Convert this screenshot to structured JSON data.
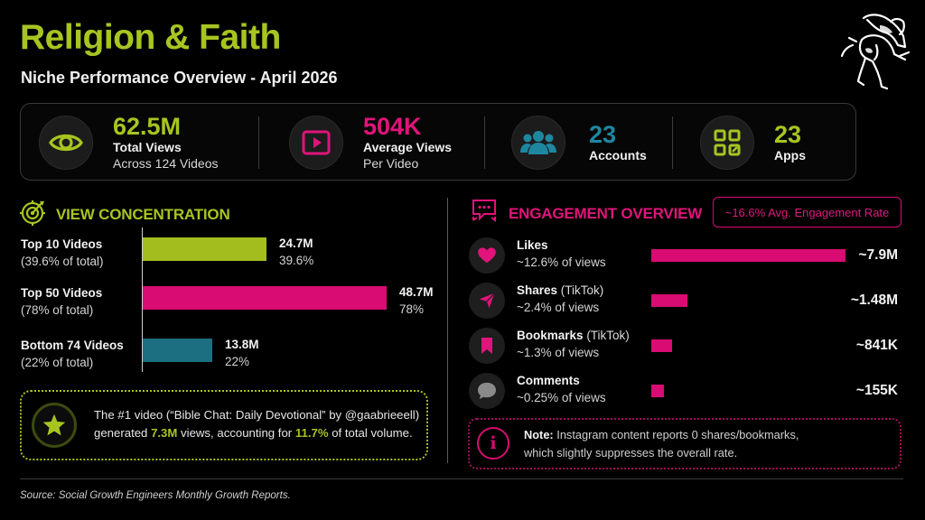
{
  "header": {
    "title": "Religion & Faith",
    "subtitle": "Niche Performance Overview - April 2026",
    "logo_icon": "angel-figure-logo"
  },
  "colors": {
    "accent_green": "#a7c520",
    "accent_pink": "#d80c72",
    "accent_teal": "#1e7d95",
    "background": "#000000"
  },
  "kpis": [
    {
      "icon": "eye-icon",
      "value": "62.5M",
      "label": "Total Views",
      "sub": "Across 124 Videos",
      "color": "#a7c520"
    },
    {
      "icon": "play-icon",
      "value": "504K",
      "label": "Average Views",
      "sub": "Per Video",
      "color": "#e0147a"
    },
    {
      "icon": "users-icon",
      "value": "23",
      "label": "Accounts",
      "sub": "",
      "color": "#1e87a0"
    },
    {
      "icon": "apps-grid-icon",
      "value": "23",
      "label": "Apps",
      "sub": "",
      "color": "#a7c520"
    }
  ],
  "view_concentration": {
    "title": "VIEW CONCENTRATION",
    "icon": "target-radar-icon",
    "rows": [
      {
        "label": "Top 10 Videos",
        "sub": "(39.6% of total)",
        "value": "24.7M",
        "pct_label": "39.6%",
        "views_m": 24.7,
        "color": "#a3bd1e"
      },
      {
        "label": "Top 50 Videos",
        "sub": "(78% of total)",
        "value": "48.7M",
        "pct_label": "78%",
        "views_m": 48.7,
        "color": "#d80c72"
      },
      {
        "label": "Bottom 74 Videos",
        "sub": "(22% of total)",
        "value": "13.8M",
        "pct_label": "22%",
        "views_m": 13.8,
        "color": "#1c6f80"
      }
    ],
    "highlight": {
      "icon": "star-icon",
      "line1": "The #1 video (“Bible Chat: Daily Devotional” by @gaabrieeell)",
      "pre": "generated ",
      "views": "7.3M",
      "mid": " views, accounting for ",
      "share": "11.7%",
      "post": " of total volume."
    }
  },
  "engagement": {
    "title": "ENGAGEMENT OVERVIEW",
    "icon": "chat-bubbles-icon",
    "rate_badge": "~16.6% Avg. Engagement Rate",
    "rows": [
      {
        "icon": "heart-icon",
        "name": "Likes",
        "platform": "",
        "pct": "~12.6% of views",
        "value": "~7.9M",
        "count": 7900000
      },
      {
        "icon": "send-icon",
        "name": "Shares",
        "platform": "(TikTok)",
        "pct": "~2.4% of views",
        "value": "~1.48M",
        "count": 1480000
      },
      {
        "icon": "bookmark-icon",
        "name": "Bookmarks",
        "platform": "(TikTok)",
        "pct": "~1.3% of views",
        "value": "~841K",
        "count": 841000
      },
      {
        "icon": "comment-icon",
        "name": "Comments",
        "platform": "",
        "pct": "~0.25% of views",
        "value": "~155K",
        "count": 155000
      }
    ],
    "note": {
      "icon": "info-icon",
      "bold": "Note:",
      "line1": " Instagram content reports 0 shares/bookmarks,",
      "line2": "which slightly suppresses the overall rate."
    }
  },
  "footer": {
    "source": "Source: Social Growth Engineers Monthly Growth Reports."
  }
}
